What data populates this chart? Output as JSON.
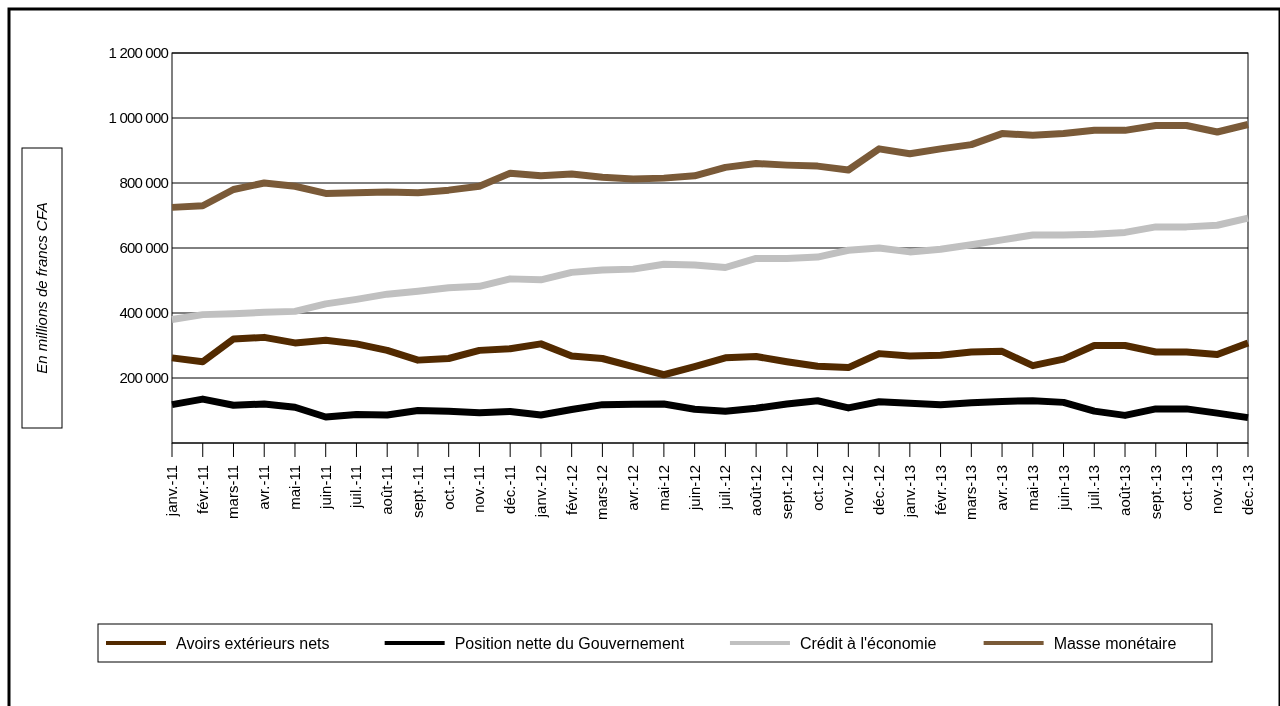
{
  "chart_data": {
    "type": "line",
    "ylabel": "En millions de francs CFA",
    "categories": [
      "janv.-11",
      "févr.-11",
      "mars-11",
      "avr.-11",
      "mai-11",
      "juin-11",
      "juil.-11",
      "août-11",
      "sept.-11",
      "oct.-11",
      "nov.-11",
      "déc.-11",
      "janv.-12",
      "févr.-12",
      "mars-12",
      "avr.-12",
      "mai-12",
      "juin-12",
      "juil.-12",
      "août-12",
      "sept.-12",
      "oct.-12",
      "nov.-12",
      "déc.-12",
      "janv.-13",
      "févr.-13",
      "mars-13",
      "avr.-13",
      "mai-13",
      "juin-13",
      "juil.-13",
      "août-13",
      "sept.-13",
      "oct.-13",
      "nov.-13",
      "déc.-13"
    ],
    "series": [
      {
        "name": "Avoirs extérieurs nets",
        "color": "#522a00",
        "values": [
          262000,
          250000,
          320000,
          325000,
          308000,
          316000,
          305000,
          285000,
          255000,
          260000,
          285000,
          290000,
          305000,
          268000,
          260000,
          235000,
          210000,
          235000,
          262000,
          266000,
          250000,
          236000,
          232000,
          275000,
          268000,
          270000,
          280000,
          282000,
          238000,
          258000,
          300000,
          300000,
          280000,
          280000,
          272000,
          308000
        ]
      },
      {
        "name": "Position nette du Gouvernement",
        "color": "#000000",
        "values": [
          118000,
          135000,
          116000,
          120000,
          110000,
          80000,
          88000,
          86000,
          100000,
          98000,
          93000,
          97000,
          86000,
          103000,
          118000,
          119000,
          120000,
          104000,
          98000,
          107000,
          120000,
          130000,
          108000,
          127000,
          122000,
          118000,
          124000,
          128000,
          130000,
          125000,
          98000,
          85000,
          105000,
          105000,
          92000,
          78000
        ]
      },
      {
        "name": "Crédit à l'économie",
        "color": "#c0c0c0",
        "values": [
          380000,
          395000,
          398000,
          402000,
          405000,
          428000,
          442000,
          458000,
          467000,
          478000,
          482000,
          505000,
          502000,
          525000,
          532000,
          535000,
          550000,
          548000,
          540000,
          568000,
          568000,
          572000,
          593000,
          600000,
          588000,
          596000,
          610000,
          625000,
          640000,
          640000,
          642000,
          648000,
          665000,
          665000,
          670000,
          692000
        ]
      },
      {
        "name": "Masse monétaire",
        "color": "#7a5a38",
        "values": [
          725000,
          730000,
          780000,
          800000,
          790000,
          768000,
          770000,
          772000,
          770000,
          778000,
          790000,
          830000,
          822000,
          828000,
          818000,
          812000,
          815000,
          822000,
          848000,
          860000,
          855000,
          852000,
          840000,
          905000,
          890000,
          905000,
          918000,
          952000,
          947000,
          952000,
          962000,
          962000,
          977000,
          977000,
          957000,
          980000
        ]
      }
    ],
    "ylim": [
      0,
      1200000
    ],
    "yticks": [
      {
        "value": 0,
        "label": null
      },
      {
        "value": 200000,
        "label": "200 000"
      },
      {
        "value": 400000,
        "label": "400 000"
      },
      {
        "value": 600000,
        "label": "600 000"
      },
      {
        "value": 800000,
        "label": "800 000"
      },
      {
        "value": 1000000,
        "label": "1 000 000"
      },
      {
        "value": 1200000,
        "label": "1 200 000"
      }
    ],
    "grid": "y",
    "legend": "bottom",
    "line_style": "solid"
  }
}
